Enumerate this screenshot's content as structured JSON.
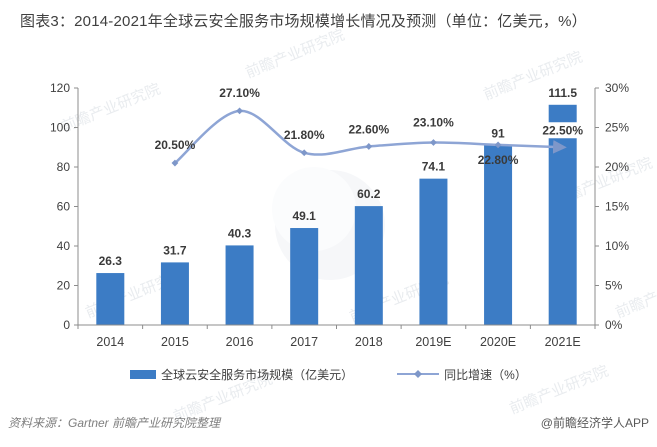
{
  "chart_data": {
    "type": "combo",
    "title": "图表3：2014-2021年全球云安全服务市场规模增长情况及预测（单位：亿美元，%）",
    "categories": [
      "2014",
      "2015",
      "2016",
      "2017",
      "2018",
      "2019E",
      "2020E",
      "2021E"
    ],
    "series": [
      {
        "name": "全球云安全服务市场规模（亿美元）",
        "type": "bar",
        "axis": "left",
        "values": [
          26.3,
          31.7,
          40.3,
          49.1,
          60.2,
          74.1,
          91,
          111.5
        ],
        "labels": [
          "26.3",
          "31.7",
          "40.3",
          "49.1",
          "60.2",
          "74.1",
          "91",
          "111.5"
        ]
      },
      {
        "name": "同比增速（%）",
        "type": "line",
        "axis": "right",
        "values": [
          null,
          20.5,
          27.1,
          21.8,
          22.6,
          23.1,
          22.8,
          22.5
        ],
        "labels": [
          "",
          "20.50%",
          "27.10%",
          "21.80%",
          "22.60%",
          "23.10%",
          "22.80%",
          "22.50%"
        ]
      }
    ],
    "left_axis": {
      "min": 0,
      "max": 120,
      "step": 20,
      "ticks": [
        "0",
        "20",
        "40",
        "60",
        "80",
        "100",
        "120"
      ]
    },
    "right_axis": {
      "min": 0,
      "max": 30,
      "step": 5,
      "ticks": [
        "0%",
        "5%",
        "10%",
        "15%",
        "20%",
        "25%",
        "30%"
      ]
    },
    "legend_position": "bottom",
    "grid": false
  },
  "legend": {
    "bar_label": "全球云安全服务市场规模（亿美元）",
    "line_label": "同比增速（%）"
  },
  "footer": {
    "source": "资料来源：Gartner 前瞻产业研究院整理",
    "credit": "@前瞻经济学人APP"
  },
  "watermark": {
    "text": "前瞻产业研究院"
  },
  "colors": {
    "bar": "#3C7CC5",
    "line": "#8EA5D5",
    "marker": "#7E97C9",
    "text": "#404040",
    "label": "#3A3A3A",
    "axis": "#8C8C8C",
    "watermark": "#D3D9DF"
  }
}
